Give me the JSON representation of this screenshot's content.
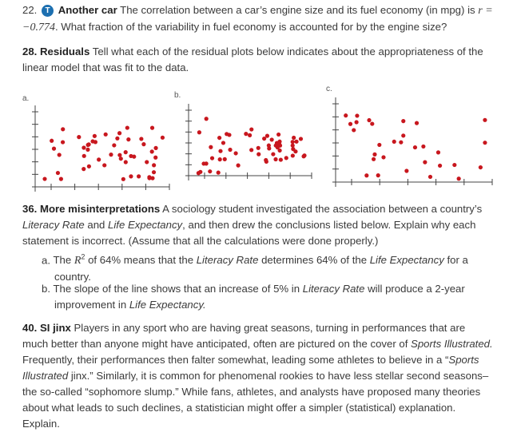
{
  "p22": {
    "label": "22.",
    "badge": "T",
    "title": "Another car",
    "body": [
      {
        "text": "The correlation between a car’s engine size and its fuel economy (in mpg) is "
      },
      {
        "text": "r = −0.774",
        "math": true
      },
      {
        "text": ". What fraction of the variability in fuel economy is accounted for by the engine size?"
      }
    ]
  },
  "p28": {
    "title": "28. Residuals",
    "body": "Tell what each of the residual plots below indicates about the appropriateness of the linear model that was fit to the data.",
    "plot_labels": [
      "a.",
      "b.",
      "c."
    ]
  },
  "p36": {
    "title": "36. More misinterpretations",
    "body": [
      {
        "text": "A sociology student investigated the association between a country’s "
      },
      {
        "text": "Literacy Rate",
        "em": true
      },
      {
        "text": " and "
      },
      {
        "text": "Life Expectancy",
        "em": true
      },
      {
        "text": ", and then drew the conclusions listed below. Explain why each statement is incorrect. (Assume that all the calculations were done properly.)"
      }
    ],
    "items": [
      {
        "label": "a.",
        "body": [
          {
            "text": "The "
          },
          {
            "text": "R",
            "math": true
          },
          {
            "text": "2",
            "sup": true
          },
          {
            "text": " of 64% means that the "
          },
          {
            "text": "Literacy Rate",
            "em": true
          },
          {
            "text": " determines 64% of the "
          },
          {
            "text": "Life Expectancy",
            "em": true
          },
          {
            "text": " for a country."
          }
        ]
      },
      {
        "label": "b.",
        "body": [
          {
            "text": "The slope of the line shows that an increase of 5% in "
          },
          {
            "text": "Literacy Rate",
            "em": true
          },
          {
            "text": " will produce a 2-year improvement in "
          },
          {
            "text": "Life Expectancy.",
            "em": true
          }
        ]
      }
    ]
  },
  "p40": {
    "title": "40. SI jinx",
    "body": [
      {
        "text": "Players in any sport who are having great seasons, turning in performances that are much better than anyone might have anticipated, often are pictured on the cover of "
      },
      {
        "text": "Sports Illustrated.",
        "em": true
      },
      {
        "text": " Frequently, their performances then falter somewhat, leading some athletes to believe in a “"
      },
      {
        "text": "Sports Illustrated",
        "em": true
      },
      {
        "text": " jinx.” Similarly, it is common for phenomenal rookies to have less stellar second seasons–the so-called “sophomore slump.” While fans, athletes, and analysts have proposed many theories about what leads to such declines, a statistician might offer a simpler (statistical) explanation. Explain."
      }
    ]
  }
}
